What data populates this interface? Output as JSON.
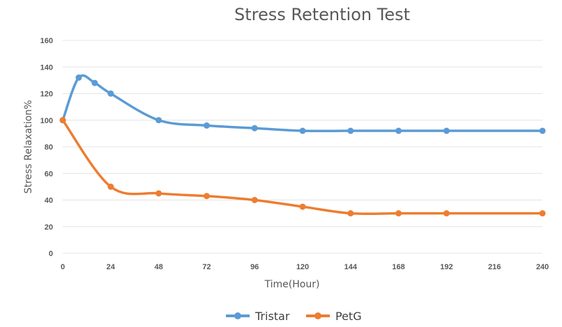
{
  "chart_data": {
    "type": "line",
    "title": "Stress Retention Test",
    "xlabel": "Time(Hour)",
    "ylabel": "Stress Relaxation%",
    "xlim": [
      0,
      240
    ],
    "ylim": [
      0,
      160
    ],
    "x_ticks": [
      0,
      24,
      48,
      72,
      96,
      120,
      144,
      168,
      192,
      216,
      240
    ],
    "y_ticks": [
      0,
      20,
      40,
      60,
      80,
      100,
      120,
      140,
      160
    ],
    "grid": "horizontal",
    "legend": "bottom-center",
    "series": [
      {
        "name": "Tristar",
        "color": "#5b9bd5",
        "points": [
          [
            0,
            100
          ],
          [
            8,
            132
          ],
          [
            16,
            128
          ],
          [
            24,
            120
          ],
          [
            48,
            100
          ],
          [
            72,
            96
          ],
          [
            96,
            94
          ],
          [
            120,
            92
          ],
          [
            144,
            92
          ],
          [
            168,
            92
          ],
          [
            192,
            92
          ],
          [
            240,
            92
          ]
        ]
      },
      {
        "name": "PetG",
        "color": "#ed7d31",
        "points": [
          [
            0,
            100
          ],
          [
            24,
            50
          ],
          [
            48,
            45
          ],
          [
            72,
            43
          ],
          [
            96,
            40
          ],
          [
            120,
            35
          ],
          [
            144,
            30
          ],
          [
            168,
            30
          ],
          [
            192,
            30
          ],
          [
            240,
            30
          ]
        ]
      }
    ]
  }
}
